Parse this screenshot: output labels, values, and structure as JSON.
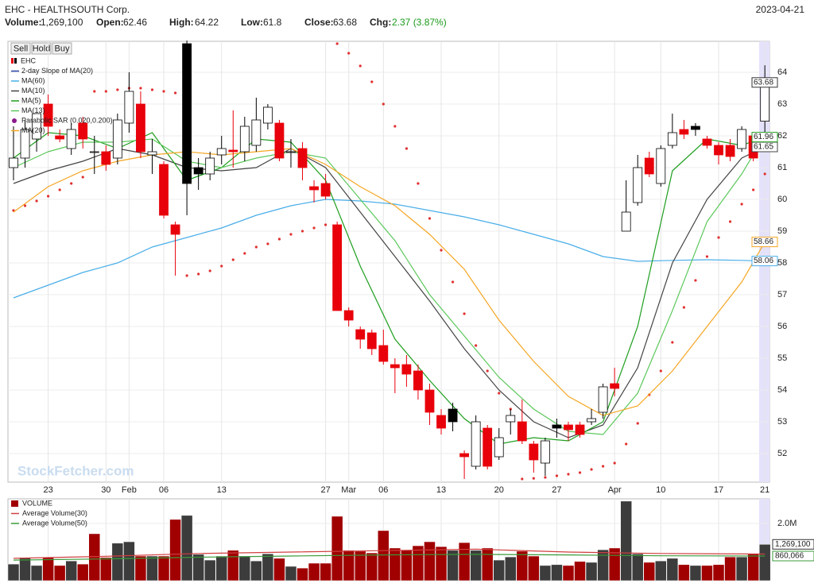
{
  "header": {
    "title": "EHC - HEALTHSOUTH Corp.",
    "date": "2023-04-21",
    "fields": [
      {
        "label": "Volume:",
        "value": "1,269,100"
      },
      {
        "label": "Open:",
        "value": "62.46"
      },
      {
        "label": "High:",
        "value": "64.22"
      },
      {
        "label": "Low:",
        "value": "61.8"
      },
      {
        "label": "Close:",
        "value": "63.68"
      },
      {
        "label": "Chg:",
        "value": "2.37 (3.87%)"
      }
    ]
  },
  "buttons": [
    "Sell",
    "Hold",
    "Buy"
  ],
  "watermark": "StockFetcher.com",
  "chart_data": [
    {
      "type": "candlestick",
      "name": "EHC",
      "legend": "upper left",
      "grid": true,
      "xlim": [
        -0.48,
        65.4
      ],
      "ylim": [
        51.1,
        64.975
      ],
      "yticks": [
        52,
        53,
        54,
        55,
        56,
        57,
        58,
        59,
        60,
        61,
        62,
        63,
        64
      ],
      "xticks": [
        {
          "value": 3,
          "label": "23"
        },
        {
          "value": 8,
          "label": "30"
        },
        {
          "value": 10,
          "label": "Feb"
        },
        {
          "value": 13,
          "label": "06"
        },
        {
          "value": 18,
          "label": "13"
        },
        {
          "value": 27,
          "label": "27"
        },
        {
          "value": 29,
          "label": "Mar"
        },
        {
          "value": 32,
          "label": "06"
        },
        {
          "value": 37,
          "label": "13"
        },
        {
          "value": 42,
          "label": "20"
        },
        {
          "value": 47,
          "label": "27"
        },
        {
          "value": 52,
          "label": "Apr"
        },
        {
          "value": 56,
          "label": "10"
        },
        {
          "value": 61,
          "label": "17"
        },
        {
          "value": 65,
          "label": "21"
        }
      ],
      "colors": {
        "up": "#ffffff",
        "down": "#e8000b",
        "down_above_prior_close": "#000000"
      },
      "open": [
        61.0,
        61.3,
        61.9,
        63.0,
        62.0,
        61.6,
        62.4,
        61.5,
        61.5,
        61.3,
        62.4,
        63.0,
        61.4,
        61.1,
        59.2,
        64.9,
        61.0,
        60.8,
        61.4,
        61.55,
        61.5,
        61.7,
        62.4,
        62.4,
        61.5,
        61.6,
        60.4,
        60.5,
        59.2,
        56.5,
        55.9,
        55.8,
        55.4,
        54.8,
        54.8,
        54.6,
        54.0,
        53.2,
        53.4,
        52.0,
        51.6,
        52.8,
        51.9,
        53.0,
        53.0,
        52.3,
        51.7,
        52.9,
        52.9,
        52.9,
        53.0,
        53.3,
        54.2,
        59.0,
        59.9,
        61.3,
        60.5,
        61.7,
        62.2,
        62.3,
        61.9,
        61.7,
        61.7,
        61.6,
        62.0,
        62.46
      ],
      "high": [
        62.3,
        62.5,
        62.7,
        63.3,
        62.2,
        62.4,
        62.6,
        62.0,
        61.7,
        62.7,
        64.0,
        63.4,
        61.9,
        61.2,
        59.3,
        65.0,
        61.3,
        61.5,
        62.0,
        62.8,
        62.6,
        63.2,
        63.0,
        62.5,
        61.9,
        61.8,
        60.6,
        60.8,
        59.3,
        56.6,
        56.0,
        55.9,
        55.9,
        55.0,
        55.1,
        54.8,
        54.2,
        53.4,
        53.6,
        52.1,
        53.2,
        52.9,
        52.8,
        53.4,
        53.7,
        52.4,
        52.5,
        53.1,
        53.0,
        53.0,
        53.4,
        54.2,
        54.7,
        60.6,
        61.4,
        61.5,
        61.7,
        62.7,
        62.5,
        62.4,
        62.0,
        61.8,
        61.9,
        62.3,
        62.0,
        64.22
      ],
      "low": [
        60.6,
        61.0,
        61.5,
        62.0,
        61.8,
        61.4,
        61.6,
        60.8,
        60.9,
        61.1,
        62.1,
        61.3,
        60.8,
        59.4,
        57.6,
        59.5,
        60.3,
        60.6,
        61.1,
        61.0,
        61.2,
        61.5,
        62.2,
        61.2,
        61.0,
        60.6,
        59.9,
        60.0,
        56.5,
        56.0,
        55.3,
        55.1,
        54.8,
        53.9,
        54.1,
        53.7,
        52.9,
        52.6,
        52.7,
        51.2,
        51.5,
        51.5,
        51.8,
        52.6,
        52.3,
        51.4,
        51.3,
        52.5,
        52.4,
        52.5,
        52.9,
        53.1,
        53.8,
        59.0,
        59.8,
        60.7,
        60.4,
        61.6,
        61.9,
        62.0,
        61.6,
        61.1,
        61.2,
        61.5,
        61.2,
        61.8
      ],
      "close": [
        61.3,
        62.2,
        62.7,
        62.3,
        61.9,
        62.2,
        61.9,
        61.5,
        61.1,
        62.5,
        63.4,
        61.5,
        61.5,
        59.5,
        58.9,
        60.5,
        60.8,
        61.3,
        61.6,
        61.5,
        62.3,
        62.5,
        62.9,
        61.3,
        61.5,
        61.0,
        60.3,
        60.1,
        56.5,
        56.2,
        55.6,
        55.3,
        54.9,
        54.7,
        54.5,
        54.0,
        53.3,
        52.8,
        53.0,
        51.9,
        53.0,
        51.6,
        52.5,
        53.2,
        52.4,
        51.8,
        52.4,
        52.8,
        52.75,
        52.6,
        53.1,
        54.1,
        54.05,
        59.6,
        61.0,
        60.8,
        61.6,
        62.1,
        62.05,
        62.2,
        61.7,
        61.4,
        61.35,
        62.2,
        61.3,
        63.68
      ],
      "series": [
        {
          "name": "2-day Slope of MA(20)",
          "color": "#2a3fa8"
        },
        {
          "name": "MA(60)",
          "color": "#49aee8",
          "x": [
            0,
            3,
            6,
            9,
            12,
            15,
            18,
            21,
            24,
            27,
            30,
            33,
            36,
            39,
            42,
            45,
            48,
            51,
            54,
            57,
            60,
            63,
            65
          ],
          "values": [
            56.9,
            57.3,
            57.7,
            58.0,
            58.5,
            58.8,
            59.1,
            59.5,
            59.8,
            60.0,
            59.95,
            59.85,
            59.65,
            59.45,
            59.2,
            58.9,
            58.6,
            58.2,
            58.05,
            58.08,
            58.1,
            58.08,
            58.06
          ]
        },
        {
          "name": "MA(10)",
          "color": "#444444",
          "x": [
            0,
            3,
            6,
            9,
            12,
            15,
            18,
            21,
            24,
            27,
            30,
            33,
            36,
            39,
            42,
            45,
            48,
            51,
            54,
            57,
            60,
            63,
            65
          ],
          "values": [
            60.5,
            60.9,
            61.2,
            61.6,
            61.4,
            61.0,
            60.9,
            61.0,
            61.6,
            61.0,
            59.6,
            58.2,
            56.8,
            55.3,
            54.0,
            53.0,
            52.5,
            52.9,
            54.7,
            58.0,
            60.0,
            61.3,
            61.65
          ]
        },
        {
          "name": "MA(5)",
          "color": "#1e9e1e",
          "x": [
            0,
            3,
            6,
            9,
            12,
            15,
            18,
            21,
            24,
            27,
            30,
            33,
            36,
            39,
            42,
            45,
            48,
            51,
            54,
            57,
            60,
            63,
            65
          ],
          "values": [
            61.3,
            62.1,
            62.0,
            61.6,
            62.1,
            60.6,
            61.0,
            61.9,
            61.8,
            60.6,
            57.9,
            55.6,
            54.3,
            53.1,
            52.3,
            52.5,
            52.4,
            53.0,
            56.0,
            60.9,
            61.9,
            61.7,
            61.96
          ]
        },
        {
          "name": "MA(13)",
          "color": "#5cc85c",
          "x": [
            0,
            3,
            6,
            9,
            12,
            15,
            18,
            21,
            24,
            27,
            30,
            33,
            36,
            39,
            42,
            45,
            48,
            51,
            54,
            57,
            60,
            63,
            65
          ],
          "values": [
            61.0,
            61.5,
            61.8,
            61.8,
            61.9,
            61.2,
            61.0,
            61.3,
            61.5,
            61.3,
            60.0,
            58.7,
            57.0,
            55.7,
            54.4,
            53.4,
            52.7,
            52.6,
            53.9,
            56.5,
            59.3,
            60.8,
            62.02
          ]
        },
        {
          "name": "Parabolic SAR (0.020,0.200)",
          "color": "#e03030",
          "style": "dots",
          "values": [
            59.65,
            59.8,
            59.95,
            60.1,
            60.3,
            60.5,
            60.7,
            63.4,
            63.4,
            63.45,
            63.5,
            63.5,
            63.45,
            63.4,
            63.35,
            57.6,
            57.65,
            57.75,
            57.9,
            58.1,
            58.3,
            58.5,
            58.6,
            58.75,
            58.9,
            59.0,
            59.1,
            59.2,
            64.9,
            64.6,
            64.2,
            63.7,
            63.0,
            62.3,
            61.6,
            60.5,
            59.4,
            58.4,
            57.4,
            56.4,
            55.4,
            54.6,
            53.9,
            53.4,
            51.2,
            51.22,
            51.25,
            51.3,
            51.35,
            51.4,
            51.5,
            51.6,
            51.7,
            52.3,
            52.95,
            53.85,
            54.6,
            55.5,
            56.6,
            57.45,
            58.2,
            58.8,
            59.3,
            59.85,
            60.3,
            60.8
          ]
        },
        {
          "name": "MA(20)",
          "color": "#f5a623",
          "x": [
            0,
            3,
            6,
            9,
            12,
            15,
            18,
            21,
            24,
            27,
            30,
            33,
            36,
            39,
            42,
            45,
            48,
            51,
            54,
            57,
            60,
            63,
            65
          ],
          "values": [
            59.6,
            60.4,
            60.9,
            61.2,
            61.4,
            61.5,
            61.4,
            61.5,
            61.6,
            61.1,
            60.4,
            59.8,
            58.9,
            57.8,
            56.2,
            54.9,
            53.8,
            53.2,
            53.5,
            54.6,
            56.0,
            57.4,
            58.66
          ]
        }
      ]
    },
    {
      "type": "bar",
      "legend": "upper left",
      "ylim": [
        0,
        2860000
      ],
      "yticks": [
        {
          "value": 2000000,
          "label": "2.0M"
        }
      ],
      "colors": {
        "up": "#3c3c3c",
        "down": "#a00000"
      },
      "series": [
        {
          "name": "VOLUME",
          "values": [
            580000,
            810000,
            530000,
            810000,
            530000,
            690000,
            580000,
            1640000,
            810000,
            1310000,
            1360000,
            860000,
            860000,
            860000,
            2140000,
            2280000,
            920000,
            720000,
            860000,
            1060000,
            860000,
            690000,
            940000,
            780000,
            500000,
            440000,
            610000,
            610000,
            2250000,
            1060000,
            1030000,
            970000,
            1750000,
            1140000,
            1060000,
            1220000,
            1360000,
            1190000,
            1060000,
            1330000,
            1060000,
            1140000,
            720000,
            830000,
            1030000,
            860000,
            530000,
            560000,
            530000,
            670000,
            640000,
            1080000,
            1140000,
            2780000,
            940000,
            640000,
            690000,
            780000,
            560000,
            530000,
            530000,
            560000,
            830000,
            830000,
            940000,
            1269100
          ],
          "value_labels": [
            null,
            null,
            null,
            null,
            null,
            null,
            null,
            null,
            null,
            null,
            null,
            null,
            null,
            null,
            null,
            null,
            null,
            null,
            null,
            null,
            null,
            null,
            null,
            null,
            null,
            null,
            null,
            null,
            null,
            null,
            null,
            null,
            null,
            null,
            null,
            null,
            null,
            null,
            null,
            null,
            null,
            null,
            null,
            null,
            null,
            null,
            null,
            null,
            null,
            null,
            null,
            null,
            null,
            null,
            null,
            null,
            null,
            null,
            null,
            null,
            null,
            null,
            null,
            null,
            null,
            "1,269,100"
          ]
        },
        {
          "name": "Average Volume(30)",
          "color": "#d04040",
          "x": [
            0,
            8,
            16,
            24,
            32,
            40,
            48,
            56,
            65
          ],
          "values": [
            780000,
            850000,
            950000,
            1000000,
            1050000,
            1100000,
            1000000,
            950000,
            930000
          ]
        },
        {
          "name": "Average Volume(50)",
          "color": "#3a9a3a",
          "x": [
            0,
            8,
            16,
            24,
            32,
            40,
            48,
            56,
            65
          ],
          "values": [
            720000,
            760000,
            820000,
            860000,
            900000,
            920000,
            900000,
            870000,
            860066
          ],
          "value_labels": [
            null,
            null,
            null,
            null,
            null,
            null,
            null,
            null,
            "860,066"
          ]
        }
      ]
    }
  ]
}
